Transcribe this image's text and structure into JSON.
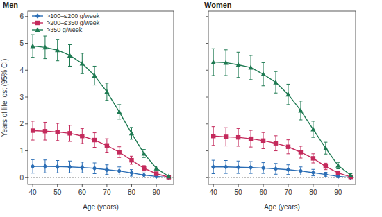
{
  "chart_data": [
    {
      "type": "line",
      "title": "Men",
      "xlabel": "Age (years)",
      "ylabel": "Years of life lost (95% CI)",
      "x": [
        40,
        45,
        50,
        55,
        60,
        65,
        70,
        75,
        80,
        85,
        90,
        95
      ],
      "xlim": [
        38,
        97
      ],
      "xticks": [
        40,
        50,
        60,
        70,
        80,
        90
      ],
      "ylim": [
        -0.25,
        6.2
      ],
      "yticks": [
        0,
        1,
        2,
        3,
        4,
        5,
        6
      ],
      "legend": "upper left",
      "series": [
        {
          "name": ">100–≤200 g/week",
          "color": "#2a6db5",
          "marker": "diamond",
          "values": [
            0.42,
            0.42,
            0.41,
            0.4,
            0.38,
            0.35,
            0.3,
            0.25,
            0.18,
            0.1,
            0.05,
            0.01
          ],
          "errors": [
            0.25,
            0.24,
            0.23,
            0.22,
            0.2,
            0.2,
            0.18,
            0.15,
            0.12,
            0.08,
            0.04,
            0.01
          ]
        },
        {
          "name": ">200–≤350 g/week",
          "color": "#c42a5c",
          "marker": "square",
          "values": [
            1.75,
            1.73,
            1.7,
            1.65,
            1.55,
            1.4,
            1.2,
            0.95,
            0.65,
            0.35,
            0.15,
            0.02
          ],
          "errors": [
            0.35,
            0.33,
            0.32,
            0.3,
            0.28,
            0.27,
            0.25,
            0.2,
            0.15,
            0.1,
            0.05,
            0.02
          ]
        },
        {
          "name": ">350 g/week",
          "color": "#1e7a52",
          "marker": "triangle",
          "values": [
            4.9,
            4.85,
            4.75,
            4.55,
            4.25,
            3.8,
            3.2,
            2.45,
            1.65,
            0.9,
            0.35,
            0.05
          ],
          "errors": [
            0.42,
            0.42,
            0.4,
            0.4,
            0.38,
            0.35,
            0.32,
            0.27,
            0.22,
            0.15,
            0.08,
            0.03
          ]
        }
      ]
    },
    {
      "type": "line",
      "title": "Women",
      "xlabel": "Age (years)",
      "x": [
        40,
        45,
        50,
        55,
        60,
        65,
        70,
        75,
        80,
        85,
        90,
        95
      ],
      "xlim": [
        38,
        97
      ],
      "xticks": [
        40,
        50,
        60,
        70,
        80,
        90
      ],
      "ylim": [
        -0.25,
        6.2
      ],
      "yticks": [
        0,
        1,
        2,
        3,
        4,
        5,
        6
      ],
      "tick_labels": "x",
      "series": [
        {
          "color": "#2a6db5",
          "marker": "diamond",
          "values": [
            0.4,
            0.4,
            0.39,
            0.38,
            0.36,
            0.33,
            0.3,
            0.25,
            0.19,
            0.12,
            0.05,
            0.01
          ],
          "errors": [
            0.25,
            0.24,
            0.23,
            0.22,
            0.2,
            0.2,
            0.18,
            0.15,
            0.12,
            0.08,
            0.04,
            0.01
          ]
        },
        {
          "color": "#c42a5c",
          "marker": "square",
          "values": [
            1.55,
            1.52,
            1.5,
            1.45,
            1.38,
            1.28,
            1.15,
            0.95,
            0.72,
            0.42,
            0.18,
            0.03
          ],
          "errors": [
            0.35,
            0.34,
            0.33,
            0.31,
            0.3,
            0.28,
            0.26,
            0.22,
            0.17,
            0.12,
            0.06,
            0.02
          ]
        },
        {
          "color": "#1e7a52",
          "marker": "triangle",
          "values": [
            4.3,
            4.28,
            4.2,
            4.1,
            3.85,
            3.55,
            3.1,
            2.5,
            1.8,
            1.1,
            0.45,
            0.1
          ],
          "errors": [
            0.5,
            0.48,
            0.47,
            0.45,
            0.43,
            0.4,
            0.38,
            0.35,
            0.3,
            0.22,
            0.12,
            0.05
          ]
        }
      ]
    }
  ]
}
